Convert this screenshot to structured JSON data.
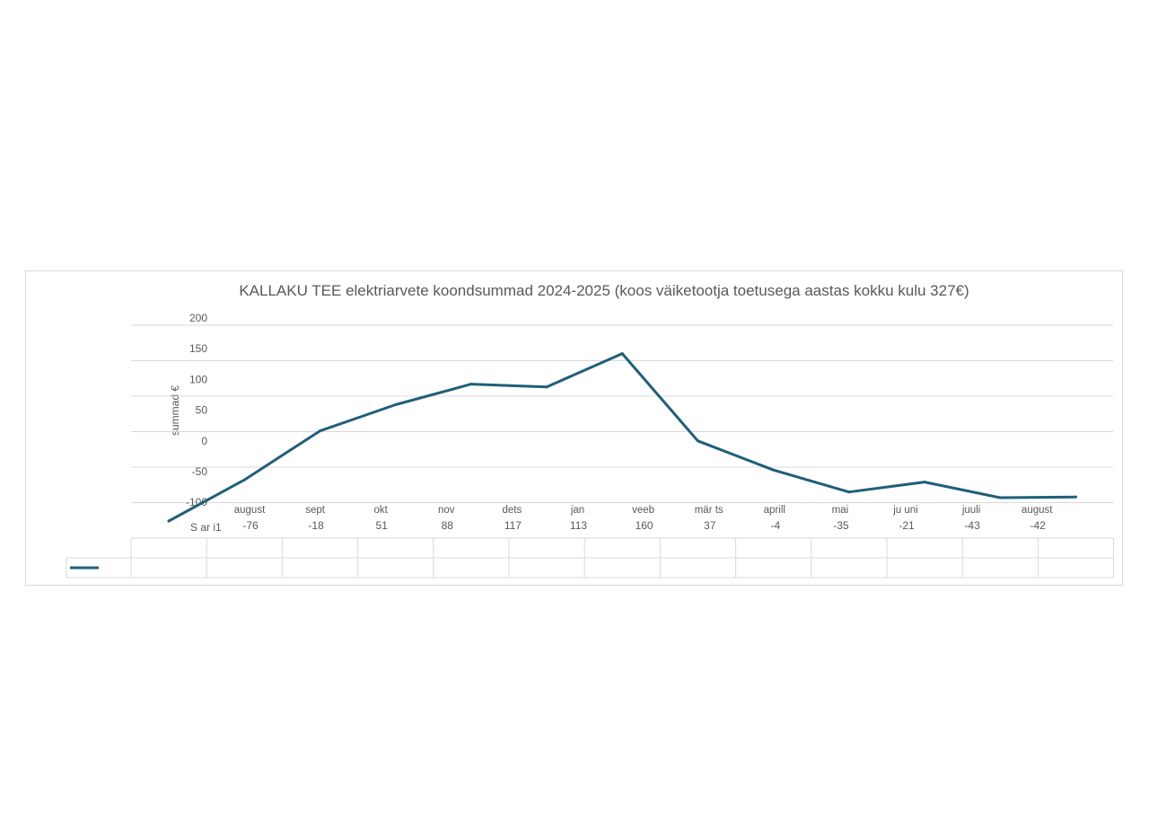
{
  "chart_data": {
    "type": "line",
    "title": "KALLAKU TEE elektriarvete koondsummad 2024-2025 (koos väiketootja toetusega aastas kokku kulu 327€)",
    "ylabel": "summad €",
    "xlabel": "",
    "ylim": [
      -100,
      200
    ],
    "yticks": [
      200,
      150,
      100,
      50,
      0,
      -50,
      -100
    ],
    "categories": [
      "august",
      "sept",
      "okt",
      "nov",
      "dets",
      "jan",
      "veeb",
      "mär ts",
      "aprill",
      "mai",
      "ju uni",
      "juuli",
      "august"
    ],
    "series": [
      {
        "name": "S ar i1",
        "color": "#1f5f7a",
        "values": [
          -76,
          -18,
          51,
          88,
          117,
          113,
          160,
          37,
          -4,
          -35,
          -21,
          -43,
          -42
        ]
      }
    ],
    "data_table": true,
    "grid": true
  }
}
